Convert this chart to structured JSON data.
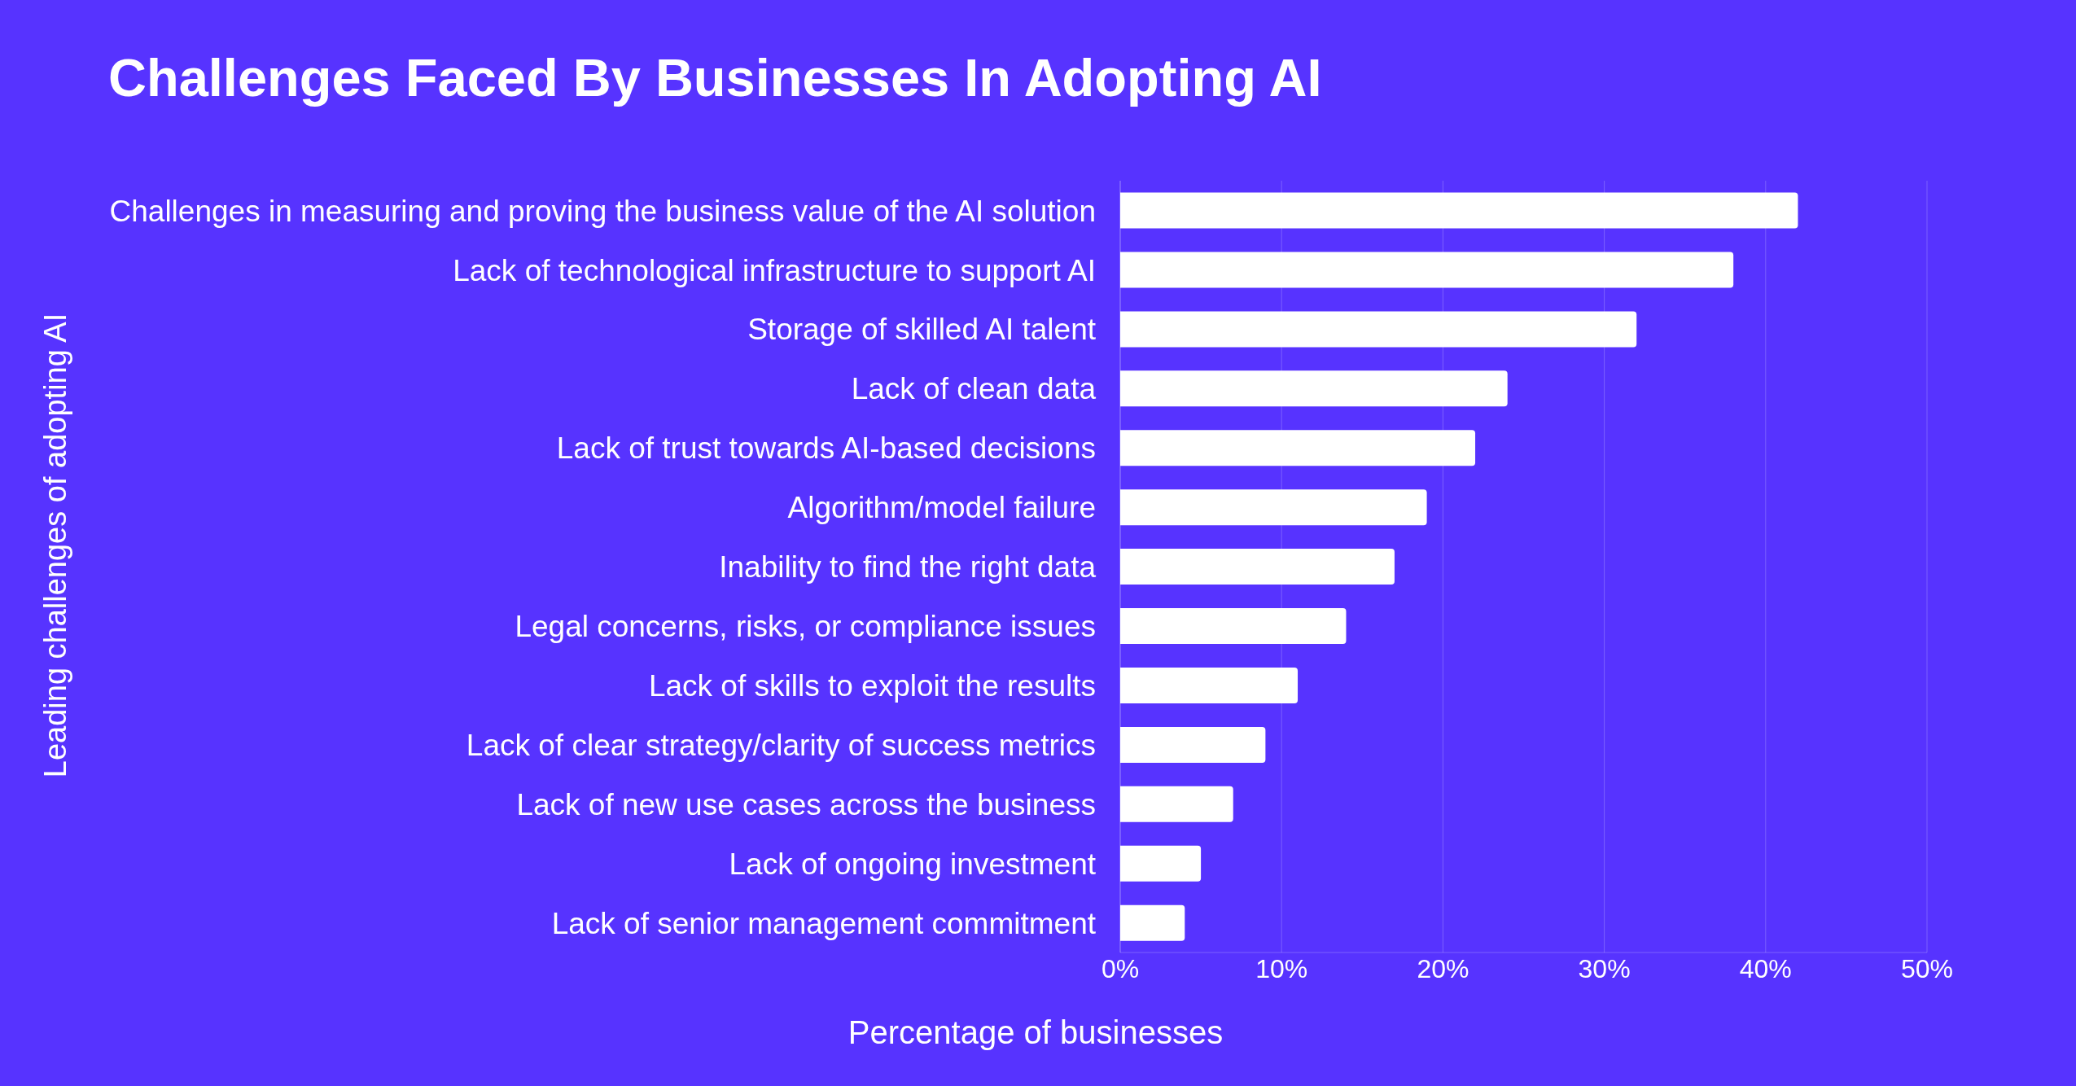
{
  "chart_data": {
    "type": "bar",
    "orientation": "horizontal",
    "title": "Challenges Faced By Businesses  In Adopting AI",
    "xlabel": "Percentage of businesses",
    "ylabel": "Leading challenges of adopting AI",
    "categories": [
      "Challenges in measuring and proving the business value of the AI solution",
      "Lack of technological infrastructure to support AI",
      "Storage of skilled AI talent",
      "Lack of clean data",
      "Lack of trust towards AI-based decisions",
      "Algorithm/model failure",
      "Inability to find the right data",
      "Legal concerns, risks, or compliance issues",
      "Lack of skills to exploit the results",
      "Lack of clear strategy/clarity of success metrics",
      "Lack of new use cases across the business",
      "Lack of ongoing investment",
      "Lack of senior management commitment"
    ],
    "values": [
      42,
      38,
      32,
      24,
      22,
      19,
      17,
      14,
      11,
      9,
      7,
      5,
      4
    ],
    "color": "#ffffff",
    "xlim": [
      0,
      50
    ],
    "xticks": [
      {
        "value": 0,
        "label": "0%"
      },
      {
        "value": 10,
        "label": "10%"
      },
      {
        "value": 20,
        "label": "20%"
      },
      {
        "value": 30,
        "label": "30%"
      },
      {
        "value": 40,
        "label": "40%"
      },
      {
        "value": 50,
        "label": "50%"
      }
    ],
    "grid": "x"
  }
}
